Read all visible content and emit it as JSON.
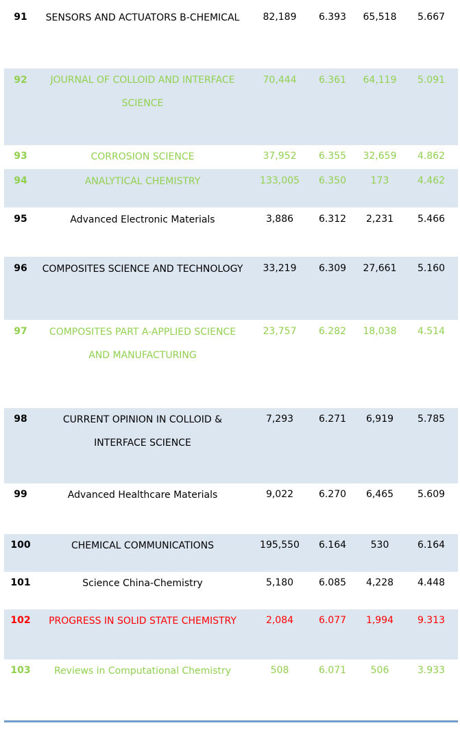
{
  "rows": [
    {
      "rank": "91",
      "name": "SENSORS AND ACTUATORS B-CHEMICAL",
      "c1": "82,189",
      "c2": "6.393",
      "c3": "65,518",
      "c4": "5.667"
    },
    {
      "rank": "92",
      "name": "JOURNAL OF COLLOID AND INTERFACE SCIENCE",
      "c1": "70,444",
      "c2": "6.361",
      "c3": "64,119",
      "c4": "5.091"
    },
    {
      "rank": "93",
      "name": "CORROSION SCIENCE",
      "c1": "37,952",
      "c2": "6.355",
      "c3": "32,659",
      "c4": "4.862"
    },
    {
      "rank": "94",
      "name": "ANALYTICAL CHEMISTRY",
      "c1": "133,005",
      "c2": "6.350",
      "c3": "173",
      "c4": "4.462"
    },
    {
      "rank": "95",
      "name": "Advanced Electronic Materials",
      "c1": "3,886",
      "c2": "6.312",
      "c3": "2,231",
      "c4": "5.466"
    },
    {
      "rank": "96",
      "name": "COMPOSITES SCIENCE AND TECHNOLOGY",
      "c1": "33,219",
      "c2": "6.309",
      "c3": "27,661",
      "c4": "5.160"
    },
    {
      "rank": "97",
      "name": "COMPOSITES PART A-APPLIED SCIENCE AND MANUFACTURING",
      "c1": "23,757",
      "c2": "6.282",
      "c3": "18,038",
      "c4": "4.514"
    },
    {
      "rank": "98",
      "name": "CURRENT OPINION IN COLLOID & INTERFACE SCIENCE",
      "c1": "7,293",
      "c2": "6.271",
      "c3": "6,919",
      "c4": "5.785"
    },
    {
      "rank": "99",
      "name": "Advanced Healthcare Materials",
      "c1": "9,022",
      "c2": "6.270",
      "c3": "6,465",
      "c4": "5.609"
    },
    {
      "rank": "100",
      "name": "CHEMICAL COMMUNICATIONS",
      "c1": "195,550",
      "c2": "6.164",
      "c3": "530",
      "c4": "6.164"
    },
    {
      "rank": "101",
      "name": "Science China-Chemistry",
      "c1": "5,180",
      "c2": "6.085",
      "c3": "4,228",
      "c4": "4.448"
    },
    {
      "rank": "102",
      "name": "PROGRESS IN SOLID STATE CHEMISTRY",
      "c1": "2,084",
      "c2": "6.077",
      "c3": "1,994",
      "c4": "9.313"
    },
    {
      "rank": "103",
      "name": "Reviews in Computational Chemistry",
      "c1": "508",
      "c2": "6.071",
      "c3": "506",
      "c4": "3.933"
    }
  ],
  "colors": {
    "green": "#92d050",
    "red": "#ff0000",
    "black": "#000000",
    "shade": "#dce6f1",
    "rule": "#4f81bd"
  }
}
